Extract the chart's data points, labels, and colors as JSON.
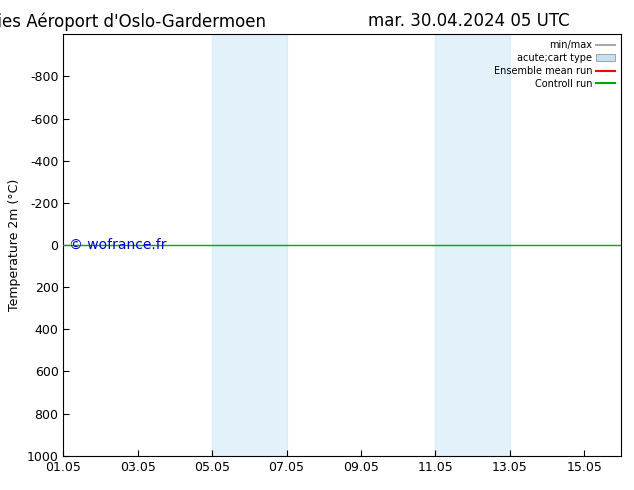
{
  "title": "ENS Time Series Aéroport d'Oslo-Gardermoen",
  "title_right": "mar. 30.04.2024 05 UTC",
  "ylabel_text": "Temperature 2m (°C)",
  "ylim_bottom": 1000,
  "ylim_top": -1000,
  "yticks": [
    -800,
    -600,
    -400,
    -200,
    0,
    200,
    400,
    600,
    800,
    1000
  ],
  "xtick_labels": [
    "01.05",
    "03.05",
    "05.05",
    "07.05",
    "09.05",
    "11.05",
    "13.05",
    "15.05"
  ],
  "xtick_positions": [
    0,
    2,
    4,
    6,
    8,
    10,
    12,
    14
  ],
  "xlim": [
    0,
    15
  ],
  "shaded_regions": [
    {
      "start": 4,
      "end": 6
    },
    {
      "start": 10,
      "end": 12
    }
  ],
  "hline_y": 0,
  "control_run_color": "#00aa00",
  "ensemble_mean_color": "#ff0000",
  "watermark": "© wofrance.fr",
  "watermark_color": "#0000cc",
  "legend_items": [
    {
      "label": "min/max",
      "color": "#aaaaaa"
    },
    {
      "label": "acute;cart type",
      "color": "#c8dff0"
    },
    {
      "label": "Ensemble mean run",
      "color": "#ff0000"
    },
    {
      "label": "Controll run",
      "color": "#00aa00"
    }
  ],
  "bg_color": "#ffffff",
  "shaded_color": "#d0e8f8",
  "shaded_alpha": 0.6,
  "tick_fontsize": 9,
  "title_fontsize": 12,
  "ylabel_fontsize": 9,
  "watermark_fontsize": 10
}
